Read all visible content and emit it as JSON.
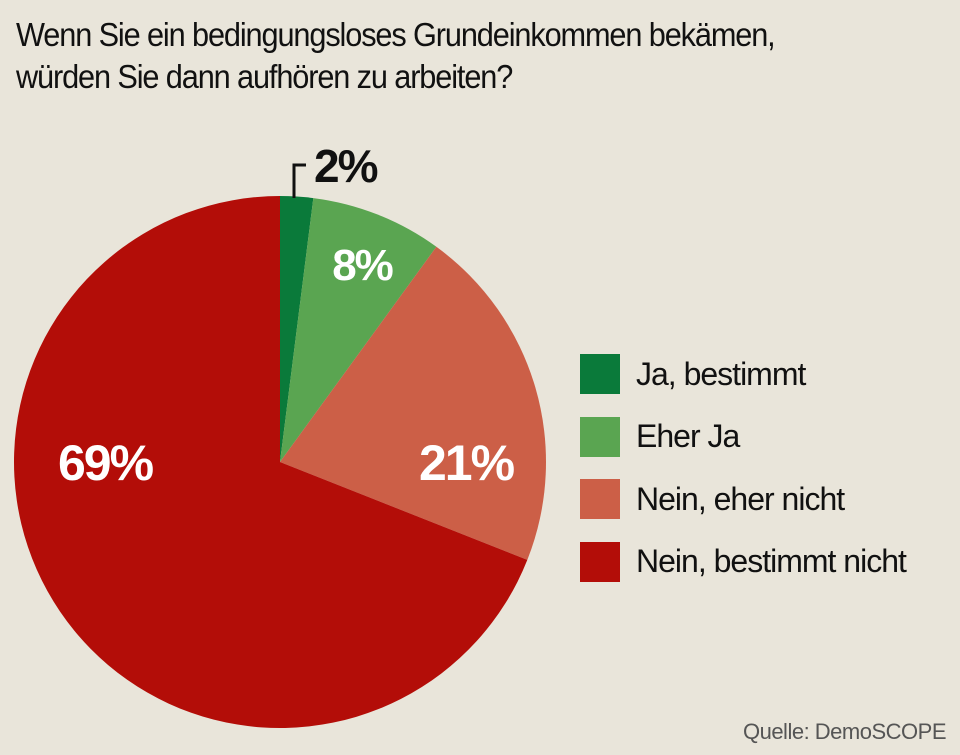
{
  "chart_data": {
    "type": "pie",
    "title_lines": [
      "Wenn Sie ein bedingungsloses Grundeinkommen bekämen,",
      "würden Sie dann aufhören zu arbeiten?"
    ],
    "categories": [
      "Ja, bestimmt",
      "Eher Ja",
      "Nein, eher nicht",
      "Nein, bestimmt nicht"
    ],
    "values": [
      2,
      8,
      21,
      69
    ],
    "labels": [
      "2%",
      "8%",
      "21%",
      "69%"
    ],
    "colors": [
      "#0a7a3a",
      "#5aa551",
      "#cc5f47",
      "#b30d08"
    ],
    "legend_position": "right",
    "source": "Quelle: DemoSCOPE"
  }
}
